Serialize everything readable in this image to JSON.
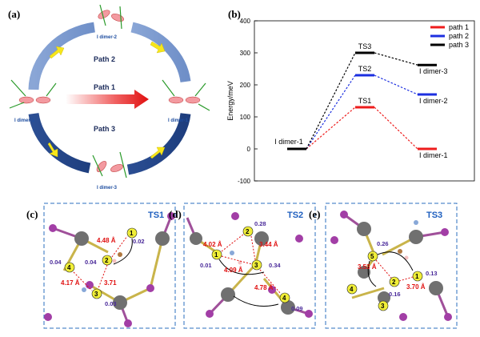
{
  "panels": {
    "a": {
      "letter": "(a)",
      "paths": [
        "Path 2",
        "Path 1",
        "Path 3"
      ],
      "dimers": {
        "left": "I dimer-1",
        "right": "I dimer-1",
        "top": "I dimer-2",
        "bottom": "I dimer-3"
      }
    },
    "b": {
      "letter": "(b)"
    },
    "c": {
      "letter": "(c)",
      "title": "TS1",
      "nodes": [
        "1",
        "2",
        "3",
        "4"
      ],
      "distances": [
        "4.48 Å",
        "3.71",
        "4.17 Å"
      ],
      "moments": [
        "0.02",
        "0.04",
        "0.04",
        "0.03"
      ]
    },
    "d": {
      "letter": "(d)",
      "title": "TS2",
      "nodes": [
        "1",
        "2",
        "3",
        "4"
      ],
      "distances": [
        "4.02 Å",
        "3.44 Å",
        "4.09 Å",
        "4.78 Å"
      ],
      "moments": [
        "0.28",
        "0.01",
        "0.34",
        "0.09"
      ]
    },
    "e": {
      "letter": "(e)",
      "title": "TS3",
      "nodes": [
        "1",
        "2",
        "3",
        "4",
        "5"
      ],
      "distances": [
        "3.53 Å",
        "3.70 Å"
      ],
      "moments": [
        "0.26",
        "0.13",
        "0.16"
      ]
    }
  },
  "chart_data": {
    "type": "line",
    "ylabel": "Energy/meV",
    "ylim": [
      -100,
      400
    ],
    "yticks": [
      "-100",
      "0",
      "100",
      "200",
      "300",
      "400"
    ],
    "legend_position": "top-right",
    "series": [
      {
        "name": "path 1",
        "color": "#ee1c1c",
        "levels": [
          0,
          130,
          0
        ],
        "labels": [
          "I dimer-1",
          "TS1",
          "I dimer-1"
        ]
      },
      {
        "name": "path 2",
        "color": "#1c2fe0",
        "levels": [
          0,
          230,
          170
        ],
        "labels": [
          "",
          "TS2",
          "I dimer-2"
        ]
      },
      {
        "name": "path 3",
        "color": "#000000",
        "levels": [
          0,
          300,
          262
        ],
        "labels": [
          "",
          "TS3",
          "I dimer-3"
        ]
      }
    ]
  }
}
